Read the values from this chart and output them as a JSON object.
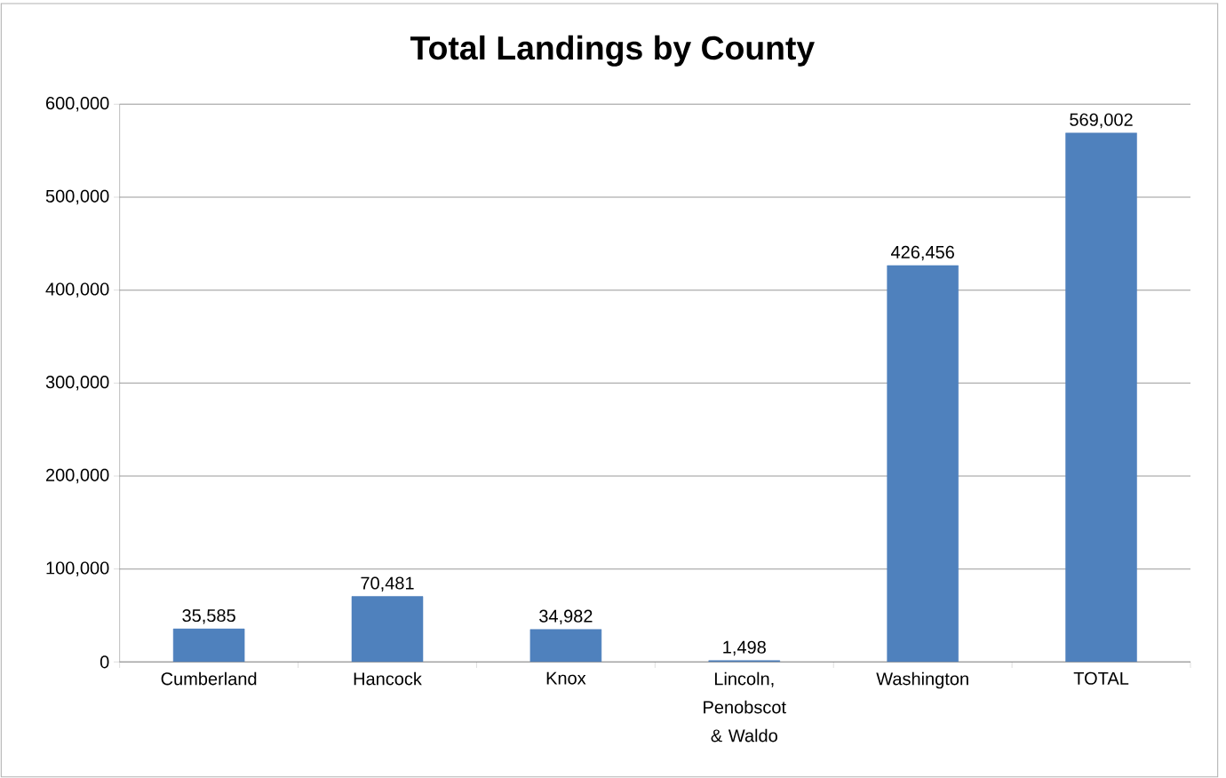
{
  "chart_data": {
    "type": "bar",
    "title": "Total Landings by County",
    "categories": [
      "Cumberland",
      "Hancock",
      "Knox",
      "Lincoln, Penobscot & Waldo",
      "Washington",
      "TOTAL"
    ],
    "values": [
      35585,
      70481,
      34982,
      1498,
      426456,
      569002
    ],
    "value_labels": [
      "35,585",
      "70,481",
      "34,982",
      "1,498",
      "426,456",
      "569,002"
    ],
    "color": "#4f81bd",
    "ylim": [
      0,
      600000
    ],
    "yticks": [
      {
        "value": 0,
        "label": "0"
      },
      {
        "value": 100000,
        "label": "100,000"
      },
      {
        "value": 200000,
        "label": "200,000"
      },
      {
        "value": 300000,
        "label": "300,000"
      },
      {
        "value": 400000,
        "label": "400,000"
      },
      {
        "value": 500000,
        "label": "500,000"
      },
      {
        "value": 600000,
        "label": "600,000"
      }
    ],
    "grid": "y"
  }
}
